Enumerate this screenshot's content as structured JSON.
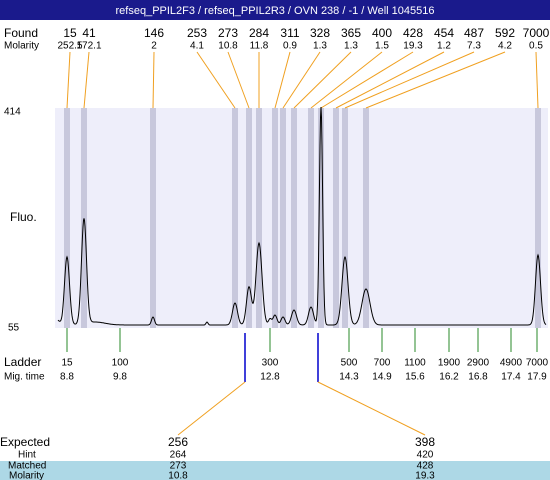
{
  "header": {
    "title": "refseq_PPIL2F3 / refseq_PPIL2R3 / OVN 238 / -1 / Well 1045516"
  },
  "found": {
    "label": "Found",
    "molarity_label": "Molarity",
    "sizes": [
      15,
      41,
      146,
      253,
      273,
      284,
      311,
      328,
      365,
      400,
      428,
      454,
      487,
      592,
      7000
    ],
    "molarities": [
      252.5,
      172.1,
      2,
      4.1,
      10.8,
      11.8,
      0.9,
      1.3,
      1.3,
      1.5,
      19.3,
      1.2,
      7.3,
      4.2,
      0.5
    ]
  },
  "plot": {
    "y_label": "Fluo.",
    "y_top": "414",
    "y_bottom": "55"
  },
  "ladder": {
    "label": "Ladder",
    "mig_label": "Mig. time",
    "sizes": [
      15,
      100,
      300,
      500,
      700,
      1100,
      1900,
      2900,
      4900,
      7000
    ],
    "mig_times": [
      8.8,
      9.8,
      12.8,
      14.3,
      14.9,
      15.6,
      16.2,
      16.8,
      17.4,
      17.9
    ]
  },
  "expected": {
    "label": "Expected",
    "hint_label": "Hint",
    "matched_label": "Matched",
    "molarity_label": "Molarity",
    "columns": [
      {
        "expected": 256,
        "hint": 264,
        "matched": 273,
        "molarity": 10.8
      },
      {
        "expected": 398,
        "hint": 420,
        "matched": 428,
        "molarity": 19.3
      }
    ]
  }
}
